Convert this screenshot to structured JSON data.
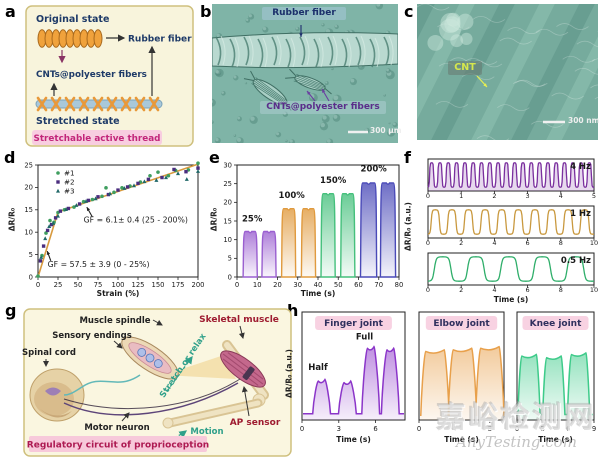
{
  "watermark": {
    "line1": "嘉峪检测网",
    "line2": "AnyTesting.com"
  },
  "panels": {
    "a": {
      "label": "a",
      "original_state": "Original state",
      "rubber_fiber": "Rubber fiber",
      "cnt_fibers": "CNTs@polyester fibers",
      "stretched_state": "Stretched state",
      "caption": "Stretchable active thread"
    },
    "b": {
      "label": "b",
      "rubber_fiber": "Rubber fiber",
      "cnt_fibers": "CNTs@polyester fibers",
      "scale_bar": "300 μm"
    },
    "c": {
      "label": "c",
      "cnt": "CNT",
      "scale_bar": "300 nm"
    },
    "d": {
      "label": "d"
    },
    "e": {
      "label": "e"
    },
    "f": {
      "label": "f"
    },
    "g": {
      "label": "g",
      "muscle_spindle": "Muscle spindle",
      "sensory_endings": "Sensory endings",
      "spinal_cord": "Spinal cord",
      "motor_neuron": "Motor neuron",
      "skeletal_muscle": "Skeletal muscle",
      "stretch_or_relax": "Stretch or relax",
      "ap_sensor": "AP sensor",
      "motion": "Motion",
      "caption": "Regulatory circuit of proprioception"
    },
    "h": {
      "label": "h"
    }
  },
  "chart_data": [
    {
      "id": "d",
      "type": "scatter",
      "xlabel": "Strain (%)",
      "ylabel": "ΔR/R₀",
      "xlim": [
        0,
        200
      ],
      "ylim": [
        0,
        25
      ],
      "xticks": [
        0,
        25,
        50,
        75,
        100,
        125,
        150,
        175,
        200
      ],
      "yticks": [
        0,
        5,
        10,
        15,
        20,
        25
      ],
      "series": [
        {
          "name": "#1",
          "marker": "circle",
          "color": "#3f9e5f",
          "points": [
            [
              0,
              0.2
            ],
            [
              5,
              4.8
            ],
            [
              10,
              9.8
            ],
            [
              15,
              12.6
            ],
            [
              20,
              12.2
            ],
            [
              25,
              14.4
            ],
            [
              33,
              15.0
            ],
            [
              45,
              15.6
            ],
            [
              57,
              16.8
            ],
            [
              68,
              17.3
            ],
            [
              80,
              18.0
            ],
            [
              85,
              19.9
            ],
            [
              95,
              18.9
            ],
            [
              105,
              19.9
            ],
            [
              115,
              20.3
            ],
            [
              128,
              21.2
            ],
            [
              140,
              22.6
            ],
            [
              150,
              23.4
            ],
            [
              163,
              22.6
            ],
            [
              172,
              23.8
            ],
            [
              188,
              23.9
            ],
            [
              200,
              25.4
            ]
          ]
        },
        {
          "name": "#2",
          "marker": "square",
          "color": "#4a2d7e",
          "points": [
            [
              3,
              3.6
            ],
            [
              7,
              6.9
            ],
            [
              12,
              10.4
            ],
            [
              17,
              11.7
            ],
            [
              22,
              13.2
            ],
            [
              28,
              14.7
            ],
            [
              38,
              15.3
            ],
            [
              52,
              16.3
            ],
            [
              63,
              17.1
            ],
            [
              75,
              17.9
            ],
            [
              88,
              18.4
            ],
            [
              100,
              19.4
            ],
            [
              112,
              20.1
            ],
            [
              125,
              20.9
            ],
            [
              138,
              21.8
            ],
            [
              155,
              22.2
            ],
            [
              170,
              24.0
            ],
            [
              185,
              23.5
            ],
            [
              200,
              24.3
            ]
          ]
        },
        {
          "name": "#3",
          "marker": "triangle",
          "color": "#206868",
          "points": [
            [
              4,
              4.4
            ],
            [
              9,
              8.6
            ],
            [
              14,
              11.3
            ],
            [
              19,
              12.0
            ],
            [
              25,
              13.6
            ],
            [
              35,
              15.1
            ],
            [
              48,
              16.0
            ],
            [
              60,
              16.9
            ],
            [
              72,
              17.5
            ],
            [
              90,
              18.6
            ],
            [
              108,
              19.8
            ],
            [
              120,
              20.4
            ],
            [
              133,
              21.3
            ],
            [
              148,
              21.6
            ],
            [
              160,
              22.2
            ],
            [
              175,
              23.1
            ],
            [
              186,
              21.8
            ],
            [
              200,
              23.6
            ]
          ]
        }
      ],
      "fit_lines": [
        {
          "from": [
            0,
            0
          ],
          "to": [
            25,
            14.5
          ],
          "color": "#d89a3e"
        },
        {
          "from": [
            25,
            14.5
          ],
          "to": [
            200,
            25.2
          ],
          "color": "#d89a3e"
        }
      ],
      "annotations": [
        {
          "text": "GF = 6.1± 0.4 (25 - 200%)",
          "x": 57,
          "y": 12.2,
          "leader": [
            68,
            13.4,
            61,
            15.6
          ]
        },
        {
          "text": "GF = 57.5 ± 3.9 (0 - 25%)",
          "x": 12,
          "y": 2.2,
          "leader": [
            16,
            3.6,
            11.5,
            5.8
          ]
        }
      ]
    },
    {
      "id": "e",
      "type": "pulses",
      "xlabel": "Time (s)",
      "ylabel": "ΔR/R₀",
      "xlim": [
        0,
        80
      ],
      "ylim": [
        0,
        30
      ],
      "xticks": [
        0,
        10,
        20,
        30,
        40,
        50,
        60,
        70,
        80
      ],
      "yticks": [
        0,
        5,
        10,
        15,
        20,
        25,
        30
      ],
      "groups": [
        {
          "label": "25%",
          "color": "#9a5fd0",
          "height": 12.2,
          "pulses": [
            [
              3,
              10
            ],
            [
              12.3,
              19.3
            ]
          ],
          "label_xy": [
            7.5,
            14.8
          ]
        },
        {
          "label": "100%",
          "color": "#e09a3e",
          "height": 18.3,
          "pulses": [
            [
              22,
              29
            ],
            [
              31.8,
              38.8
            ]
          ],
          "label_xy": [
            27,
            21.2
          ]
        },
        {
          "label": "150%",
          "color": "#45c07c",
          "height": 22.3,
          "pulses": [
            [
              41.5,
              48.5
            ],
            [
              51.2,
              58.2
            ]
          ],
          "label_xy": [
            47.5,
            25.2
          ]
        },
        {
          "label": "200%",
          "color": "#4a4ab8",
          "height": 25.2,
          "pulses": [
            [
              61,
              69
            ],
            [
              70.8,
              78.3
            ]
          ],
          "label_xy": [
            67.5,
            28.2
          ]
        }
      ]
    },
    {
      "id": "f",
      "type": "waves",
      "xlabel": "Time (s)",
      "ylabel": "ΔR/R₀ (a.u.)",
      "subplots": [
        {
          "label": "4 Hz",
          "color": "#7a2f9e",
          "xlim": [
            0,
            5
          ],
          "xticks": [
            0,
            1,
            2,
            3,
            4,
            5
          ],
          "cycles": 20,
          "fill": true
        },
        {
          "label": "1 Hz",
          "color": "#c9993f",
          "xlim": [
            0,
            10
          ],
          "xticks": [
            0,
            2,
            4,
            6,
            8,
            10
          ],
          "cycles": 10,
          "fill": false
        },
        {
          "label": "0.5 Hz",
          "color": "#2fae6a",
          "xlim": [
            0,
            10
          ],
          "xticks": [
            0,
            2,
            4,
            6,
            8,
            10
          ],
          "cycles": 5,
          "fill": false
        }
      ]
    },
    {
      "id": "h",
      "type": "joint-pulses",
      "ylabel": "ΔR/R₀ (a.u.)",
      "subplots": [
        {
          "title": "Finger joint",
          "color": "#8b35c9",
          "xlabel": "Time (s)",
          "xlim": [
            0,
            8.4
          ],
          "xticks": [
            0,
            3,
            6
          ],
          "baseline": 0.08,
          "rise": 0.45,
          "top_width": 0.55,
          "peaks": [
            {
              "x": 1.6,
              "h": 0.5
            },
            {
              "x": 3.7,
              "h": 0.48
            },
            {
              "x": 5.6,
              "h": 0.92
            },
            {
              "x": 7.2,
              "h": 0.9
            }
          ],
          "annotations": [
            {
              "text": "Half",
              "x": 1.3,
              "y": 0.64
            },
            {
              "text": "Full",
              "x": 5.1,
              "y": 1.03
            }
          ]
        },
        {
          "title": "Elbow joint",
          "color": "#e8a04b",
          "xlabel": "Time (s)",
          "xlim": [
            0,
            9.6
          ],
          "xticks": [
            0,
            4,
            8
          ],
          "baseline": 0.06,
          "rise": 0.55,
          "top_width": 2.1,
          "peaks": [
            {
              "x": 1.8,
              "h": 0.88
            },
            {
              "x": 4.9,
              "h": 0.9
            },
            {
              "x": 8.0,
              "h": 0.92
            }
          ],
          "annotations": []
        },
        {
          "title": "Knee joint",
          "color": "#3ecb8a",
          "xlabel": "Time (s)",
          "xlim": [
            0,
            9
          ],
          "xticks": [
            0,
            3,
            6,
            9
          ],
          "baseline": 0.07,
          "rise": 0.45,
          "top_width": 1.7,
          "peaks": [
            {
              "x": 1.4,
              "h": 0.82
            },
            {
              "x": 4.3,
              "h": 0.8
            },
            {
              "x": 7.2,
              "h": 0.84
            }
          ],
          "annotations": []
        }
      ]
    }
  ]
}
